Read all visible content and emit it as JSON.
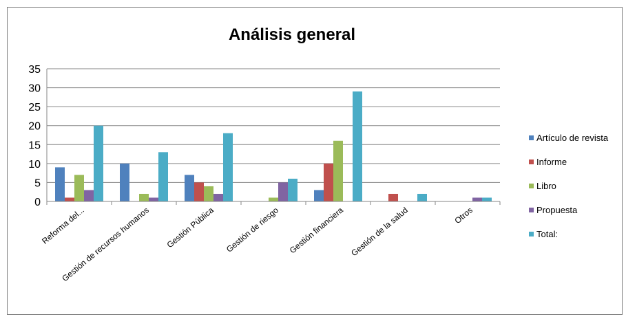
{
  "chart_data": {
    "type": "bar",
    "title": "Análisis general",
    "xlabel": "",
    "ylabel": "",
    "ylim": [
      0,
      35
    ],
    "yticks": [
      0,
      5,
      10,
      15,
      20,
      25,
      30,
      35
    ],
    "grid": true,
    "legend_position": "right",
    "categories": [
      "Reforma del...",
      "Gestión de recursos humanos",
      "Gestión Pública",
      "Gestión de riesgo",
      "Gestión financiera",
      "Gestión de la salud",
      "Otros"
    ],
    "series": [
      {
        "name": "Artículo de revista",
        "color": "#4f81bd",
        "values": [
          9,
          10,
          7,
          0,
          3,
          0,
          0
        ]
      },
      {
        "name": "Informe",
        "color": "#c0504d",
        "values": [
          1,
          0,
          5,
          0,
          10,
          2,
          0
        ]
      },
      {
        "name": "Libro",
        "color": "#9bbb59",
        "values": [
          7,
          2,
          4,
          1,
          16,
          0,
          0
        ]
      },
      {
        "name": "Propuesta",
        "color": "#8064a2",
        "values": [
          3,
          1,
          2,
          5,
          0,
          0,
          1
        ]
      },
      {
        "name": "Total:",
        "color": "#4bacc6",
        "values": [
          20,
          13,
          18,
          6,
          29,
          2,
          1
        ]
      }
    ]
  }
}
